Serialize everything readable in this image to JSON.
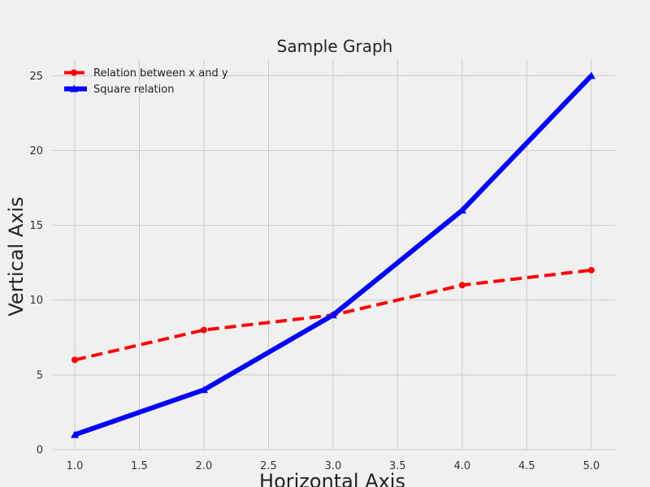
{
  "chart_data": {
    "type": "line",
    "title": "Sample Graph",
    "xlabel": "Horizontal Axis",
    "ylabel": "Vertical Axis",
    "x": [
      1,
      2,
      3,
      4,
      5
    ],
    "xlim": [
      0.83,
      5.19
    ],
    "ylim": [
      0,
      26.1
    ],
    "xticks": [
      "1.0",
      "1.5",
      "2.0",
      "2.5",
      "3.0",
      "3.5",
      "4.0",
      "4.5",
      "5.0"
    ],
    "yticks": [
      "0",
      "5",
      "10",
      "15",
      "20",
      "25"
    ],
    "grid": true,
    "legend_position": "top-left",
    "series": [
      {
        "name": "Relation between x and y",
        "values": [
          6,
          8,
          9,
          11,
          12
        ],
        "color": "#ff0000",
        "line_style": "dashed",
        "marker": "circle"
      },
      {
        "name": "Square relation",
        "values": [
          1,
          4,
          9,
          16,
          25
        ],
        "color": "#0000ff",
        "line_style": "solid",
        "marker": "triangle"
      }
    ]
  }
}
